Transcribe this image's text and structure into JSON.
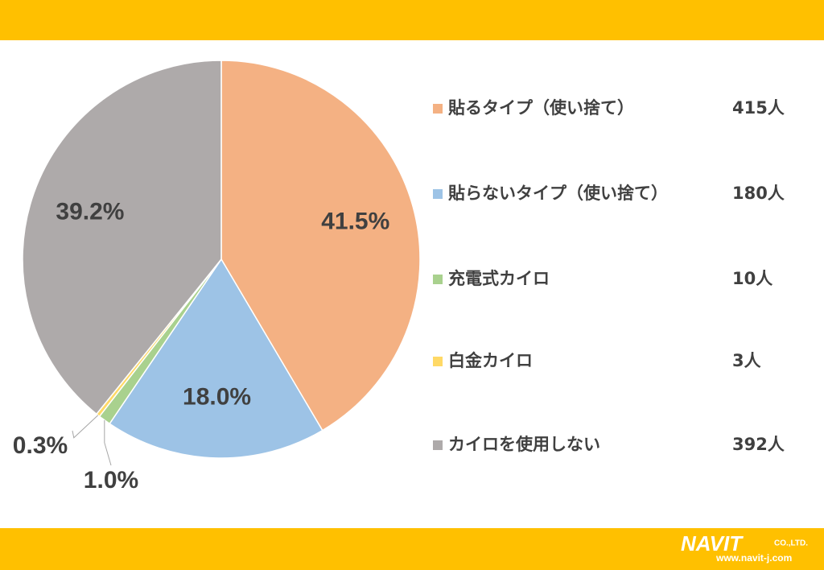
{
  "chart_data": {
    "type": "pie",
    "categories": [
      "貼るタイプ（使い捨て）",
      "貼らないタイプ（使い捨て）",
      "充電式カイロ",
      "白金カイロ",
      "カイロを使用しない"
    ],
    "values": [
      41.5,
      18.0,
      1.0,
      0.3,
      39.2
    ],
    "value_labels": [
      "41.5%",
      "18.0%",
      "1.0%",
      "0.3%",
      "39.2%"
    ],
    "counts": [
      "415人",
      "180人",
      "10人",
      "3人",
      "392人"
    ],
    "colors": [
      "#f4b183",
      "#9dc3e6",
      "#a9d18e",
      "#ffd966",
      "#aeaaaa"
    ],
    "legend": "right"
  },
  "logo": {
    "name": "NAVIT",
    "suffix": "CO.,LTD.",
    "url": "www.navit-j.com"
  }
}
